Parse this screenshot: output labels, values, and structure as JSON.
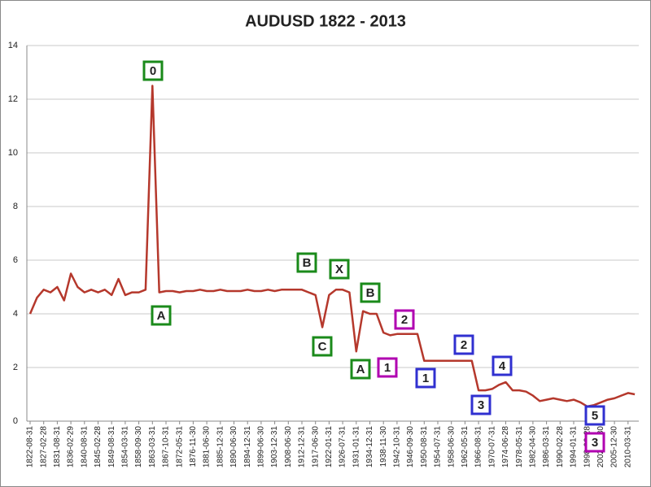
{
  "chart_data": {
    "type": "line",
    "title": "AUDUSD  1822 - 2013",
    "categories": [
      "1822-08-31",
      null,
      "1827-02-28",
      null,
      "1831-08-31",
      null,
      "1836-02-29",
      null,
      "1840-08-31",
      null,
      "1845-02-28",
      null,
      "1849-08-31",
      null,
      "1854-03-31",
      null,
      "1858-09-30",
      null,
      "1863-03-31",
      null,
      "1867-10-31",
      null,
      "1872-05-31",
      null,
      "1876-11-30",
      null,
      "1881-06-30",
      null,
      "1885-12-31",
      null,
      "1890-06-30",
      null,
      "1894-12-31",
      null,
      "1899-06-30",
      null,
      "1903-12-31",
      null,
      "1908-06-30",
      null,
      "1912-12-31",
      null,
      "1917-06-30",
      null,
      "1922-01-31",
      null,
      "1926-07-31",
      null,
      "1931-01-31",
      null,
      "1934-12-31",
      null,
      "1938-11-30",
      null,
      "1942-10-31",
      null,
      "1946-09-30",
      null,
      "1950-08-31",
      null,
      "1954-07-31",
      null,
      "1958-06-30",
      null,
      "1962-05-31",
      null,
      "1966-08-31",
      null,
      "1970-07-31",
      null,
      "1974-06-28",
      null,
      "1978-05-31",
      null,
      "1982-04-30",
      null,
      "1986-03-31",
      null,
      "1990-02-28",
      null,
      "1994-01-31",
      null,
      "1998-02-28",
      null,
      "2002-12-30",
      null,
      "2005-12-30",
      null,
      "2010-03-31",
      null
    ],
    "values": [
      4.0,
      4.6,
      4.9,
      4.8,
      5.0,
      4.5,
      5.5,
      5.0,
      4.8,
      4.9,
      4.8,
      4.9,
      4.7,
      5.3,
      4.7,
      4.8,
      4.8,
      4.9,
      12.5,
      4.8,
      4.85,
      4.85,
      4.8,
      4.85,
      4.85,
      4.9,
      4.85,
      4.85,
      4.9,
      4.85,
      4.85,
      4.85,
      4.9,
      4.85,
      4.85,
      4.9,
      4.85,
      4.9,
      4.9,
      4.9,
      4.9,
      4.8,
      4.7,
      3.5,
      4.7,
      4.9,
      4.9,
      4.8,
      2.6,
      4.1,
      4.0,
      4.0,
      3.3,
      3.2,
      3.25,
      3.25,
      3.25,
      3.25,
      2.25,
      2.25,
      2.25,
      2.25,
      2.25,
      2.25,
      2.25,
      2.25,
      1.15,
      1.15,
      1.2,
      1.35,
      1.45,
      1.15,
      1.15,
      1.1,
      0.95,
      0.75,
      0.8,
      0.85,
      0.8,
      0.75,
      0.8,
      0.7,
      0.55,
      0.6,
      0.7,
      0.8,
      0.85,
      0.95,
      1.05,
      1.0
    ],
    "color": "#b5382c",
    "ylim": [
      0,
      14
    ],
    "yticks": [
      0,
      2,
      4,
      6,
      8,
      10,
      12,
      14
    ],
    "grid": true,
    "annotations": [
      {
        "text": "0",
        "color": "#1a8a1a"
      },
      {
        "text": "A",
        "color": "#1a8a1a"
      },
      {
        "text": "B",
        "color": "#1a8a1a"
      },
      {
        "text": "X",
        "color": "#1a8a1a"
      },
      {
        "text": "C",
        "color": "#1a8a1a"
      },
      {
        "text": "B",
        "color": "#1a8a1a"
      },
      {
        "text": "A",
        "color": "#1a8a1a"
      },
      {
        "text": "2",
        "color": "#b000b0"
      },
      {
        "text": "1",
        "color": "#b000b0"
      },
      {
        "text": "1",
        "color": "#3030d0"
      },
      {
        "text": "2",
        "color": "#3030d0"
      },
      {
        "text": "3",
        "color": "#3030d0"
      },
      {
        "text": "4",
        "color": "#3030d0"
      },
      {
        "text": "5",
        "color": "#3030d0"
      },
      {
        "text": "3",
        "color": "#b000b0"
      }
    ]
  }
}
